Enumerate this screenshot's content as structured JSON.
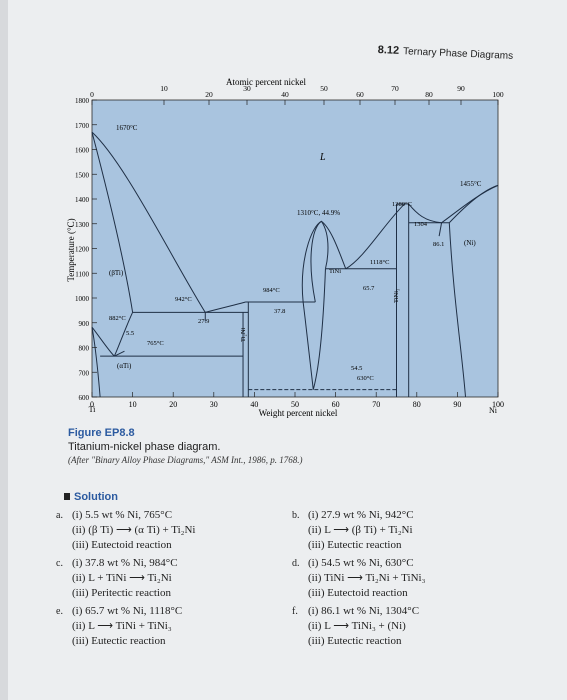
{
  "header": {
    "number": "8.12",
    "title": "Ternary Phase Diagrams"
  },
  "diagram": {
    "top_axis_title": "Atomic percent nickel",
    "top_ticks": [
      "0",
      "10",
      "20",
      "30",
      "40",
      "50",
      "60",
      "70",
      "80",
      "90",
      "100"
    ],
    "bottom_ticks": [
      "0",
      "10",
      "20",
      "30",
      "40",
      "50",
      "60",
      "70",
      "80",
      "90",
      "100"
    ],
    "bottom_endpoints": {
      "left": "Ti",
      "right": "Ni"
    },
    "xlabel": "Weight percent nickel",
    "ylabel": "Temperature (°C)",
    "y_ticks": [
      "1800",
      "1700",
      "1600",
      "1500",
      "1400",
      "1300",
      "1200",
      "1100",
      "1000",
      "900",
      "800",
      "700",
      "600"
    ],
    "labels": {
      "ti_melt": "1670°C",
      "liquid": "L",
      "ni_melt": "1455°C",
      "cong_tini": "1310°C, 44.9%",
      "beta_ti": "(βTi)",
      "alpha_ti": "(αTi)",
      "ni_phase": "(Ni)",
      "tini": "TiNi",
      "ti2ni": "Ti₂Ni",
      "tini3": "TiNi₃",
      "t942": "942°C",
      "t984": "984°C",
      "t1118": "1118°C",
      "t1380": "1380°C",
      "t1304": "1304",
      "t765": "765°C",
      "t630": "630°C",
      "t882": "882°C",
      "c279": "27.9",
      "c378": "37.8",
      "c657": "65.7",
      "c545": "54.5",
      "c55": "5.5",
      "c861": "86.1"
    }
  },
  "caption": {
    "figure": "Figure EP8.8",
    "title": "Titanium-nickel phase diagram.",
    "source": "(After \"Binary Alloy Phase Diagrams,\" ASM Int., 1986, p. 1768.)"
  },
  "solution": {
    "heading": "Solution",
    "parts": [
      {
        "label": "a.",
        "lines": [
          "(i) 5.5 wt % Ni, 765°C",
          "(ii) (β Ti) ⟶ (α Ti) + Ti₂Ni",
          "(iii) Eutectoid reaction"
        ]
      },
      {
        "label": "b.",
        "lines": [
          "(i) 27.9 wt % Ni, 942°C",
          "(ii) L ⟶ (β Ti) + Ti₂Ni",
          "(iii) Eutectic reaction"
        ]
      },
      {
        "label": "c.",
        "lines": [
          "(i) 37.8 wt % Ni, 984°C",
          "(ii) L + TiNi ⟶ Ti₂Ni",
          "(iii) Peritectic reaction"
        ]
      },
      {
        "label": "d.",
        "lines": [
          "(i) 54.5 wt % Ni, 630°C",
          "(ii) TiNi ⟶ Ti₂Ni + TiNi₃",
          "(iii) Eutectoid reaction"
        ]
      },
      {
        "label": "e.",
        "lines": [
          "(i) 65.7 wt % Ni, 1118°C",
          "(ii) L ⟶ TiNi + TiNi₃",
          "(iii) Eutectic reaction"
        ]
      },
      {
        "label": "f.",
        "lines": [
          "(i) 86.1 wt % Ni, 1304°C",
          "(ii) L ⟶ TiNi₃ + (Ni)",
          "(iii) Eutectic reaction"
        ]
      }
    ]
  }
}
